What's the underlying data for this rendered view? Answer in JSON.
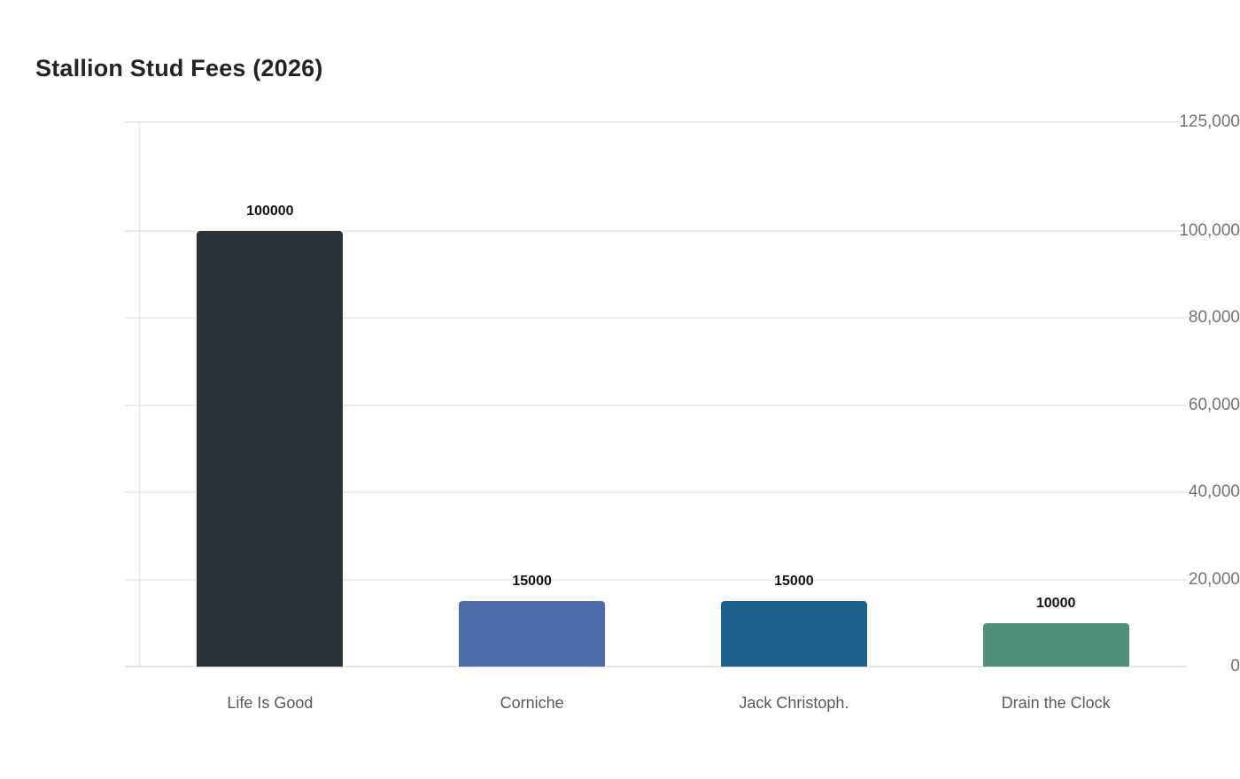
{
  "page": {
    "background_color": "#ffffff"
  },
  "chart_data": {
    "type": "bar",
    "title": "Stallion Stud Fees (2026)",
    "categories": [
      "Life Is Good",
      "Corniche",
      "Jack Christoph.",
      "Drain the Clock"
    ],
    "values": [
      100000,
      15000,
      15000,
      10000
    ],
    "value_labels": [
      "100000",
      "15000",
      "15000",
      "10000"
    ],
    "bar_colors": [
      "#2c3338",
      "#4b6ea9",
      "#1c608c",
      "#4f8f7b"
    ],
    "xlabel": "",
    "ylabel": "",
    "ylim": [
      0,
      125000
    ],
    "y_ticks": [
      {
        "value": 0,
        "label": "0"
      },
      {
        "value": 20000,
        "label": "20,000"
      },
      {
        "value": 40000,
        "label": "40,000"
      },
      {
        "value": 60000,
        "label": "60,000"
      },
      {
        "value": 80000,
        "label": "80,000"
      },
      {
        "value": 100000,
        "label": "100,000"
      },
      {
        "value": 125000,
        "label": "125,000"
      }
    ],
    "grid": true,
    "legend": false,
    "style": {
      "title_color": "#212529",
      "ytick_color": "#6f7479",
      "xlabel_color": "#55595e",
      "value_label_color": "#101418",
      "grid_color": "#ececec",
      "axis_line_color": "#d2d2d2"
    }
  }
}
